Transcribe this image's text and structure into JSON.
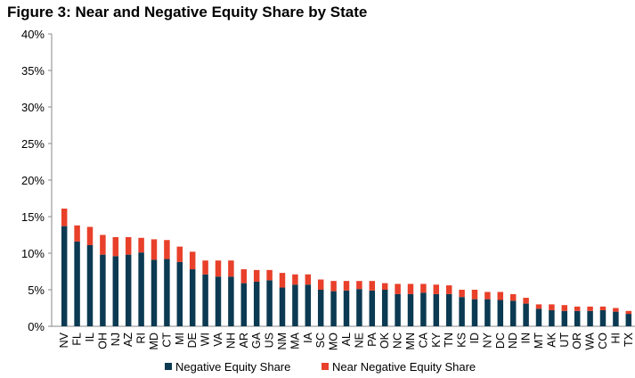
{
  "title": "Figure 3: Near and Negative Equity Share by State",
  "colors": {
    "negative": "#0b3a52",
    "near": "#e8402a"
  },
  "chart_data": {
    "type": "bar",
    "stacked": true,
    "ylim": [
      0,
      40
    ],
    "yticks": [
      "0%",
      "5%",
      "10%",
      "15%",
      "20%",
      "25%",
      "30%",
      "35%",
      "40%"
    ],
    "grid": false,
    "legend_position": "bottom",
    "categories": [
      "NV",
      "FL",
      "IL",
      "OH",
      "NJ",
      "AZ",
      "RI",
      "MD",
      "CT",
      "MI",
      "DE",
      "WI",
      "VA",
      "NH",
      "AR",
      "GA",
      "US",
      "NM",
      "MA",
      "IA",
      "SC",
      "MO",
      "AL",
      "NE",
      "PA",
      "OK",
      "NC",
      "MN",
      "CA",
      "KY",
      "TN",
      "KS",
      "ID",
      "NY",
      "DC",
      "ND",
      "IN",
      "MT",
      "AK",
      "UT",
      "OR",
      "WA",
      "CO",
      "HI",
      "TX"
    ],
    "series": [
      {
        "name": "Negative Equity Share",
        "values": [
          13.7,
          11.6,
          11.1,
          9.8,
          9.6,
          9.8,
          10.1,
          9.1,
          9.2,
          8.8,
          7.8,
          7.1,
          6.8,
          6.8,
          5.9,
          6.1,
          6.3,
          5.3,
          5.7,
          5.7,
          5.0,
          4.8,
          4.9,
          5.1,
          4.9,
          5.0,
          4.4,
          4.4,
          4.6,
          4.4,
          4.4,
          4.0,
          3.7,
          3.7,
          3.6,
          3.5,
          3.1,
          2.4,
          2.2,
          2.1,
          2.1,
          2.1,
          2.2,
          2.0,
          1.7
        ]
      },
      {
        "name": "Near Negative Equity Share",
        "values": [
          2.4,
          2.2,
          2.5,
          2.7,
          2.6,
          2.4,
          2.0,
          2.8,
          2.6,
          2.1,
          2.4,
          1.9,
          2.2,
          2.2,
          1.9,
          1.6,
          1.4,
          2.0,
          1.4,
          1.4,
          1.4,
          1.4,
          1.3,
          1.1,
          1.3,
          0.9,
          1.4,
          1.4,
          1.2,
          1.3,
          1.2,
          1.0,
          1.3,
          1.0,
          1.1,
          0.9,
          0.8,
          0.6,
          0.8,
          0.8,
          0.6,
          0.6,
          0.5,
          0.5,
          0.4
        ]
      }
    ]
  }
}
